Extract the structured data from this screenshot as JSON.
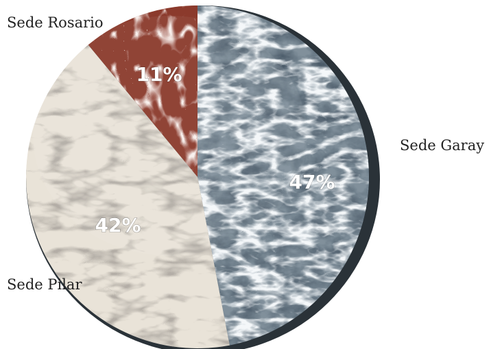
{
  "chart_data": {
    "type": "pie",
    "title": "",
    "slices": [
      {
        "label": "Sede Garay",
        "value": 47,
        "display": "47%",
        "color": "#4a5a68",
        "texture": "dark-green-marble"
      },
      {
        "label": "Sede Pilar",
        "value": 42,
        "display": "42%",
        "color": "#e9e3d8",
        "texture": "white-calacatta-marble"
      },
      {
        "label": "Sede Rosario",
        "value": 11,
        "display": "11%",
        "color": "#8b3a2c",
        "texture": "red-marble"
      }
    ],
    "start_angle_deg": 0,
    "direction": "clockwise",
    "style": "3d-marble-disc"
  }
}
